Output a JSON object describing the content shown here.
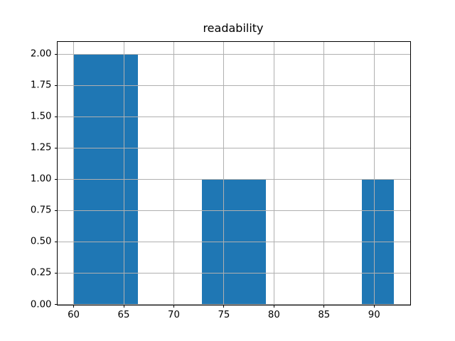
{
  "chart_data": {
    "type": "bar",
    "subtype": "histogram",
    "title": "readability",
    "xlabel": "",
    "ylabel": "",
    "bin_edges": [
      60,
      63.2,
      66.4,
      69.6,
      72.8,
      76.0,
      79.2,
      82.4,
      85.6,
      88.8,
      92.0
    ],
    "counts": [
      2,
      2,
      0,
      0,
      1,
      1,
      0,
      0,
      0,
      1
    ],
    "xlim": [
      58.4,
      93.6
    ],
    "ylim": [
      0,
      2.1
    ],
    "x_ticks": [
      60,
      65,
      70,
      75,
      80,
      85,
      90
    ],
    "x_tick_labels": [
      "60",
      "65",
      "70",
      "75",
      "80",
      "85",
      "90"
    ],
    "y_ticks": [
      0,
      0.25,
      0.5,
      0.75,
      1.0,
      1.25,
      1.5,
      1.75,
      2.0
    ],
    "y_tick_labels": [
      "0.00",
      "0.25",
      "0.50",
      "0.75",
      "1.00",
      "1.25",
      "1.50",
      "1.75",
      "2.00"
    ],
    "bar_color": "#1f77b4",
    "grid": true,
    "grid_color": "#b0b0b0",
    "grid_above_bars": true,
    "legend": null
  }
}
